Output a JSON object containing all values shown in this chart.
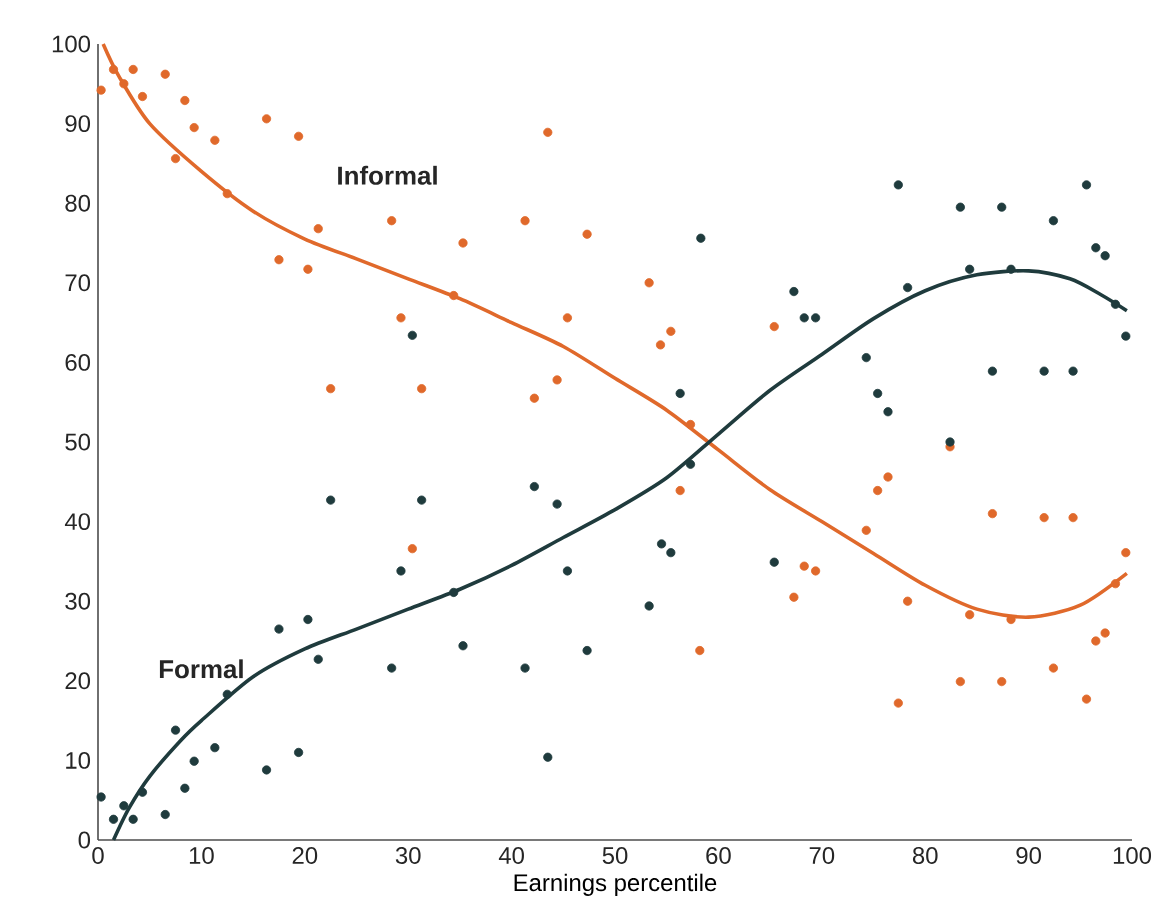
{
  "chart_data": {
    "type": "scatter",
    "xlabel": "Earnings percentile",
    "xlim": [
      0,
      100
    ],
    "ylim": [
      0,
      100
    ],
    "xticks": [
      0,
      10,
      20,
      30,
      40,
      50,
      60,
      70,
      80,
      90,
      100
    ],
    "yticks": [
      0,
      10,
      20,
      30,
      40,
      50,
      60,
      70,
      80,
      90,
      100
    ],
    "grid": false,
    "series": [
      {
        "marker": "circle",
        "color": "#e0692b",
        "x": [
          0.3,
          1.5,
          2.5,
          3.4,
          4.3,
          6.5,
          8.4,
          9.3,
          7.5,
          11.3,
          12.5,
          16.3,
          19.4,
          21.3,
          17.5,
          20.3,
          22.5,
          28.4,
          29.3,
          31.3,
          34.4,
          35.3,
          41.3,
          43.5,
          42.2,
          44.4,
          45.4,
          47.3,
          30.4,
          53.3,
          55.4,
          54.4,
          65.4,
          57.3,
          82.4,
          56.3,
          58.2,
          67.3,
          68.3,
          69.4,
          74.3,
          75.4,
          76.4,
          77.4,
          78.3,
          83.4,
          84.3,
          86.5,
          87.4,
          88.3,
          91.5,
          92.4,
          94.3,
          95.6,
          96.5,
          97.4,
          98.4,
          99.4
        ],
        "values": [
          94.2,
          96.8,
          95,
          96.8,
          93.4,
          96.2,
          92.9,
          89.5,
          85.6,
          87.9,
          81.2,
          90.6,
          88.4,
          76.8,
          72.9,
          71.7,
          56.7,
          77.8,
          65.6,
          56.7,
          68.4,
          75,
          77.8,
          88.9,
          55.5,
          57.8,
          65.6,
          76.1,
          36.6,
          70,
          63.9,
          62.2,
          64.5,
          52.2,
          49.4,
          43.9,
          23.8,
          30.5,
          34.4,
          33.8,
          38.9,
          43.9,
          45.6,
          17.2,
          30,
          19.9,
          28.3,
          41,
          19.9,
          27.7,
          40.5,
          21.6,
          40.5,
          17.7,
          25,
          26,
          32.2,
          36.1
        ]
      },
      {
        "marker": "circle",
        "color": "#1f3b3d",
        "x": [
          30.4,
          0.3,
          1.5,
          2.5,
          3.4,
          4.3,
          6.5,
          7.5,
          8.4,
          9.3,
          11.3,
          12.5,
          16.3,
          17.5,
          19.4,
          20.3,
          21.3,
          22.5,
          28.4,
          29.3,
          31.3,
          34.4,
          35.3,
          41.3,
          42.2,
          43.5,
          44.4,
          45.4,
          47.3,
          58.3,
          56.3,
          67.3,
          68.3,
          69.4,
          74.3,
          75.4,
          76.4,
          77.4,
          78.3,
          82.4,
          83.4,
          84.3,
          86.5,
          87.4,
          88.3,
          91.5,
          92.4,
          94.3,
          95.6,
          96.5,
          97.4,
          98.4,
          99.4,
          57.3,
          54.5,
          55.4,
          65.4,
          53.3
        ],
        "values": [
          63.4,
          5.4,
          2.6,
          4.3,
          2.6,
          6,
          3.2,
          13.8,
          6.5,
          9.9,
          11.6,
          18.3,
          8.8,
          26.5,
          11,
          27.7,
          22.7,
          42.7,
          21.6,
          33.8,
          42.7,
          31.1,
          24.4,
          21.6,
          44.4,
          10.4,
          42.2,
          33.8,
          23.8,
          75.6,
          56.1,
          68.9,
          65.6,
          65.6,
          60.6,
          56.1,
          53.8,
          82.3,
          69.4,
          50,
          79.5,
          71.7,
          58.9,
          79.5,
          71.7,
          58.9,
          77.8,
          58.9,
          82.3,
          74.4,
          73.4,
          67.3,
          63.3,
          47.2,
          37.2,
          36.1,
          34.9,
          29.4
        ]
      },
      {
        "type": "line",
        "name": "Informal",
        "marker": "none",
        "color": "#e0692b",
        "x": [
          0.5,
          2,
          5,
          10,
          15,
          20,
          25,
          30,
          35,
          40,
          45,
          50,
          55,
          60,
          65,
          70,
          75,
          80,
          85,
          90,
          95,
          99.5
        ],
        "values": [
          100,
          96,
          90,
          84,
          79,
          75.5,
          73,
          70.5,
          68,
          65,
          62,
          58,
          54,
          49,
          44,
          40,
          36,
          32,
          29,
          28,
          29.5,
          33.5
        ]
      },
      {
        "type": "line",
        "name": "Formal",
        "marker": "none",
        "color": "#1f3b3d",
        "x": [
          1.5,
          3,
          5,
          8,
          10,
          15,
          20,
          25,
          30,
          35,
          40,
          45,
          50,
          55,
          60,
          65,
          70,
          75,
          80,
          85,
          90,
          94,
          97,
          99.5
        ],
        "values": [
          0,
          4,
          8,
          12.5,
          15,
          20.5,
          24,
          26.5,
          29,
          31.5,
          34.5,
          38,
          41.5,
          45.5,
          51,
          56.5,
          61,
          65.5,
          69,
          71,
          71.5,
          70.5,
          68.5,
          66.5
        ]
      }
    ]
  }
}
